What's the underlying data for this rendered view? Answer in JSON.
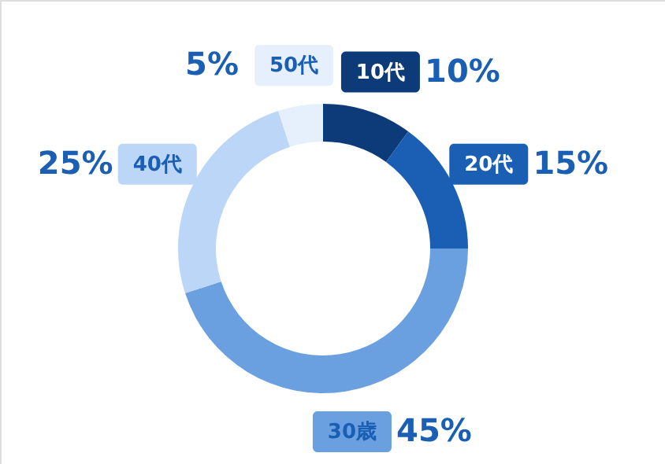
{
  "chart_data": {
    "type": "donut",
    "categories": [
      "10代",
      "20代",
      "30歳",
      "40代",
      "50代"
    ],
    "values": [
      10,
      15,
      45,
      25,
      5
    ],
    "colors": [
      "#0d3b7a",
      "#1a5fb4",
      "#6a9fe0",
      "#bcd6f7",
      "#e6f0fc"
    ],
    "value_labels": [
      "10%",
      "15%",
      "45%",
      "25%",
      "5%"
    ]
  }
}
